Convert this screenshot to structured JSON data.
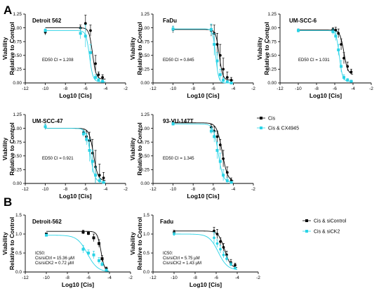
{
  "panel_letters": {
    "a": "A",
    "b": "B"
  },
  "colors": {
    "black": "#000000",
    "cyan": "#29d3e6"
  },
  "legend_a": {
    "black": "Cis",
    "cyan": "Cis & CX4945"
  },
  "legend_b": {
    "black": "Cis & siControl",
    "cyan": "Cis & siCK2"
  },
  "chart_data": [
    {
      "type": "line",
      "title": "Detroit 562",
      "annotation": [
        "ED50 CI = 1.208"
      ],
      "xlabel": "Log10 [Cis]",
      "ylabel": [
        "Viability",
        "Relative to Control"
      ],
      "xlim": [
        -12,
        -2
      ],
      "ylim": [
        0,
        1.25
      ],
      "xticks": [
        "-12",
        "-10",
        "-8",
        "-6",
        "-4",
        "-2"
      ],
      "yticks": [
        "0.00",
        "0.25",
        "0.50",
        "0.75",
        "1.00",
        "1.25"
      ],
      "series": [
        {
          "name": "Cis",
          "color": "black",
          "marker": "circle",
          "x": [
            -10,
            -6.5,
            -6,
            -5.5,
            -5,
            -4.7,
            -4.3
          ],
          "y": [
            0.92,
            1.0,
            1.08,
            0.95,
            0.35,
            0.15,
            0.1
          ],
          "err": [
            0.05,
            0.05,
            0.15,
            0.1,
            0.15,
            0.05,
            0.05
          ],
          "curve": {
            "top": 1.0,
            "bottom": 0.07,
            "logec50": -5.3,
            "hill": 2.5
          }
        },
        {
          "name": "Cis & CX4945",
          "color": "cyan",
          "marker": "square",
          "x": [
            -10,
            -6.5,
            -6,
            -5.5,
            -5,
            -4.7,
            -4.3
          ],
          "y": [
            0.95,
            0.9,
            0.85,
            0.55,
            0.1,
            0.05,
            0.03
          ],
          "err": [
            0.03,
            0.1,
            0.2,
            0.15,
            0.05,
            0.03,
            0.02
          ],
          "curve": {
            "top": 0.95,
            "bottom": 0.02,
            "logec50": -5.6,
            "hill": 2.5
          }
        }
      ]
    },
    {
      "type": "line",
      "title": "FaDu",
      "annotation": [
        "ED50 CI = 0.845"
      ],
      "xlabel": "Log10 [Cis]",
      "ylabel": [
        "Viability",
        "Relative to Control"
      ],
      "xlim": [
        -12,
        -2
      ],
      "ylim": [
        0,
        1.25
      ],
      "xticks": [
        "-12",
        "-10",
        "-8",
        "-6",
        "-4",
        "-2"
      ],
      "yticks": [
        "0.00",
        "0.25",
        "0.50",
        "0.75",
        "1.00",
        "1.25"
      ],
      "series": [
        {
          "name": "Cis",
          "color": "black",
          "marker": "circle",
          "x": [
            -10,
            -6.2,
            -5.9,
            -5.6,
            -5.3,
            -5,
            -4.6,
            -4.2
          ],
          "y": [
            0.97,
            0.95,
            0.9,
            0.7,
            0.5,
            0.25,
            0.1,
            0.05
          ],
          "err": [
            0.06,
            0.1,
            0.15,
            0.2,
            0.2,
            0.2,
            0.1,
            0.05
          ],
          "curve": {
            "top": 0.97,
            "bottom": 0.05,
            "logec50": -5.4,
            "hill": 2.5
          }
        },
        {
          "name": "Cis & CX4945",
          "color": "cyan",
          "marker": "square",
          "x": [
            -10,
            -6.2,
            -5.9,
            -5.6,
            -5.3,
            -5,
            -4.6,
            -4.2
          ],
          "y": [
            0.98,
            0.97,
            0.7,
            0.4,
            0.15,
            0.05,
            0.02,
            0.0
          ],
          "err": [
            0.05,
            0.1,
            0.2,
            0.15,
            0.1,
            0.05,
            0.02,
            0.02
          ],
          "curve": {
            "top": 0.98,
            "bottom": 0.0,
            "logec50": -5.75,
            "hill": 3
          }
        }
      ]
    },
    {
      "type": "line",
      "title": "UM-SCC-6",
      "annotation": [
        "ED50 CI = 1.031"
      ],
      "xlabel": "Log10 [Cis]",
      "ylabel": [
        "Viability",
        "Relative to Control"
      ],
      "xlim": [
        -12,
        -2
      ],
      "ylim": [
        0,
        1.25
      ],
      "xticks": [
        "-12",
        "-10",
        "-8",
        "-6",
        "-4",
        "-2"
      ],
      "yticks": [
        "0.00",
        "0.25",
        "0.50",
        "0.75",
        "1.00",
        "1.25"
      ],
      "series": [
        {
          "name": "Cis",
          "color": "black",
          "marker": "circle",
          "x": [
            -10,
            -6.2,
            -5.9,
            -5.6,
            -5.3,
            -5,
            -4.6,
            -4.2
          ],
          "y": [
            0.95,
            0.97,
            0.96,
            0.9,
            0.7,
            0.45,
            0.3,
            0.2
          ],
          "err": [
            0.03,
            0.03,
            0.05,
            0.08,
            0.1,
            0.1,
            0.08,
            0.05
          ],
          "curve": {
            "top": 0.96,
            "bottom": 0.15,
            "logec50": -5.0,
            "hill": 2
          }
        },
        {
          "name": "Cis & CX4945",
          "color": "cyan",
          "marker": "square",
          "x": [
            -10,
            -6.2,
            -5.9,
            -5.6,
            -5.3,
            -5,
            -4.6,
            -4.2
          ],
          "y": [
            0.95,
            0.93,
            0.85,
            0.6,
            0.3,
            0.1,
            0.05,
            0.03
          ],
          "err": [
            0.03,
            0.05,
            0.08,
            0.1,
            0.1,
            0.05,
            0.03,
            0.02
          ],
          "curve": {
            "top": 0.95,
            "bottom": 0.03,
            "logec50": -5.5,
            "hill": 2.5
          }
        }
      ]
    },
    {
      "type": "line",
      "title": "UM-SCC-47",
      "annotation": [
        "ED50 CI = 0.921"
      ],
      "xlabel": "Log10 [Cis]",
      "ylabel": [
        "Viability",
        "Relative to Control"
      ],
      "xlim": [
        -12,
        -2
      ],
      "ylim": [
        0,
        1.25
      ],
      "xticks": [
        "-12",
        "-10",
        "-8",
        "-6",
        "-4",
        "-2"
      ],
      "yticks": [
        "0.00",
        "0.25",
        "0.50",
        "0.75",
        "1.00",
        "1.25"
      ],
      "series": [
        {
          "name": "Cis",
          "color": "black",
          "marker": "circle",
          "x": [
            -10,
            -6.2,
            -5.9,
            -5.6,
            -5.3,
            -5,
            -4.6,
            -4.2
          ],
          "y": [
            1.03,
            0.92,
            0.85,
            0.78,
            0.55,
            0.3,
            0.15,
            0.1
          ],
          "err": [
            0.05,
            0.05,
            0.1,
            0.15,
            0.25,
            0.3,
            0.2,
            0.1
          ],
          "curve": {
            "top": 1.0,
            "bottom": 0.05,
            "logec50": -5.2,
            "hill": 2
          }
        },
        {
          "name": "Cis & CX4945",
          "color": "cyan",
          "marker": "square",
          "x": [
            -10,
            -6.2,
            -5.9,
            -5.6,
            -5.3,
            -5,
            -4.6,
            -4.2
          ],
          "y": [
            1.03,
            0.9,
            0.8,
            0.6,
            0.4,
            0.15,
            0.05,
            0.02
          ],
          "err": [
            0.05,
            0.05,
            0.1,
            0.2,
            0.2,
            0.15,
            0.05,
            0.02
          ],
          "curve": {
            "top": 1.0,
            "bottom": 0.02,
            "logec50": -5.5,
            "hill": 2
          }
        }
      ]
    },
    {
      "type": "line",
      "title": "93-VU-147T",
      "annotation": [
        "ED50 CI = 1.345"
      ],
      "xlabel": "Log10 [Cis]",
      "ylabel": [
        "Viability",
        "Relative to Control"
      ],
      "xlim": [
        -12,
        -2
      ],
      "ylim": [
        0,
        1.25
      ],
      "xticks": [
        "-12",
        "-10",
        "-8",
        "-6",
        "-4",
        "-2"
      ],
      "yticks": [
        "0.00",
        "0.25",
        "0.50",
        "0.75",
        "1.00",
        "1.25"
      ],
      "series": [
        {
          "name": "Cis",
          "color": "black",
          "marker": "circle",
          "x": [
            -10,
            -6.2,
            -5.9,
            -5.6,
            -5.3,
            -5,
            -4.6,
            -4.2
          ],
          "y": [
            1.1,
            1.02,
            0.95,
            0.85,
            0.7,
            0.45,
            0.2,
            0.05
          ],
          "err": [
            0.03,
            0.05,
            0.08,
            0.1,
            0.1,
            0.15,
            0.1,
            0.05
          ],
          "curve": {
            "top": 1.1,
            "bottom": 0.03,
            "logec50": -5.1,
            "hill": 1.6
          }
        },
        {
          "name": "Cis & CX4945",
          "color": "cyan",
          "marker": "square",
          "x": [
            -10,
            -6.2,
            -5.9,
            -5.6,
            -5.3,
            -5,
            -4.6,
            -4.2
          ],
          "y": [
            1.08,
            0.95,
            0.85,
            0.6,
            0.4,
            0.15,
            0.05,
            0.02
          ],
          "err": [
            0.03,
            0.05,
            0.1,
            0.15,
            0.15,
            0.1,
            0.05,
            0.02
          ],
          "curve": {
            "top": 1.08,
            "bottom": 0.02,
            "logec50": -5.5,
            "hill": 1.8
          }
        }
      ]
    },
    {
      "type": "line",
      "title": "Detroit-562",
      "annotation": [
        "IC50:",
        "Cis/siCtrl = 15.36 µM",
        "Cis/siCK2 = 0.72 µM"
      ],
      "xlabel": "Log10 [Cis]",
      "ylabel": [
        "Viability",
        "Relative to Control"
      ],
      "xlim": [
        -12,
        -2
      ],
      "ylim": [
        0,
        1.5
      ],
      "xticks": [
        "-12",
        "-10",
        "-8",
        "-6",
        "-4",
        "-2"
      ],
      "yticks": [
        "0.0",
        "0.5",
        "1.0",
        "1.5"
      ],
      "series": [
        {
          "name": "Cis & siControl",
          "color": "black",
          "marker": "square",
          "x": [
            -10,
            -6.5,
            -6,
            -5.5,
            -5,
            -4.7,
            -4.3
          ],
          "y": [
            1.0,
            1.05,
            1.02,
            0.9,
            0.75,
            0.35,
            0.08
          ],
          "err": [
            0.03,
            0.05,
            0.05,
            0.1,
            0.1,
            0.08,
            0.05
          ],
          "curve": {
            "top": 1.07,
            "bottom": 0.0,
            "logec50": -4.8,
            "hill": 2.5
          }
        },
        {
          "name": "Cis & siCK2",
          "color": "cyan",
          "marker": "square",
          "x": [
            -10,
            -6.5,
            -6,
            -5.5,
            -5,
            -4.7,
            -4.3
          ],
          "y": [
            0.97,
            0.6,
            0.5,
            0.45,
            0.3,
            0.2,
            0.05
          ],
          "err": [
            0.03,
            0.1,
            0.08,
            0.1,
            0.08,
            0.05,
            0.03
          ],
          "curve": {
            "top": 0.97,
            "bottom": 0.0,
            "logec50": -6.1,
            "hill": 0.9
          }
        }
      ]
    },
    {
      "type": "line",
      "title": "Fadu",
      "annotation": [
        "IC50:",
        "Cis/siCtrl = 5.75 µM",
        "Cis/siCK2 = 1.43 µM"
      ],
      "xlabel": "Log10 [Cis]",
      "ylabel": [
        "Viability",
        "Relative to Control"
      ],
      "xlim": [
        -12,
        -2
      ],
      "ylim": [
        0,
        1.5
      ],
      "xticks": [
        "-12",
        "-10",
        "-8",
        "-6",
        "-4",
        "-2"
      ],
      "yticks": [
        "0.0",
        "0.5",
        "1.0",
        "1.5"
      ],
      "series": [
        {
          "name": "Cis & siControl",
          "color": "black",
          "marker": "circle",
          "x": [
            -10,
            -6.2,
            -5.9,
            -5.6,
            -5.3,
            -5,
            -4.6,
            -4.2
          ],
          "y": [
            1.05,
            1.08,
            1.0,
            0.8,
            0.65,
            0.45,
            0.25,
            0.18
          ],
          "err": [
            0.05,
            0.1,
            0.12,
            0.1,
            0.1,
            0.1,
            0.08,
            0.05
          ],
          "curve": {
            "top": 1.08,
            "bottom": 0.1,
            "logec50": -5.2,
            "hill": 1.5
          }
        },
        {
          "name": "Cis & siCK2",
          "color": "cyan",
          "marker": "circle",
          "x": [
            -10,
            -6.2,
            -5.9,
            -5.6,
            -5.3,
            -5,
            -4.6,
            -4.2
          ],
          "y": [
            1.0,
            0.9,
            0.75,
            0.6,
            0.45,
            0.35,
            0.2,
            0.1
          ],
          "err": [
            0.05,
            0.15,
            0.1,
            0.1,
            0.08,
            0.08,
            0.05,
            0.03
          ],
          "curve": {
            "top": 1.0,
            "bottom": 0.05,
            "logec50": -5.8,
            "hill": 1.0
          }
        }
      ]
    }
  ]
}
